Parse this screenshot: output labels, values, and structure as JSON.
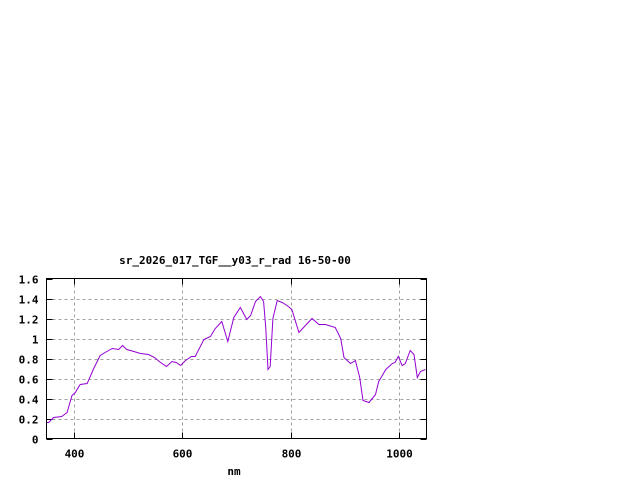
{
  "chart_data": {
    "type": "line",
    "title": "sr_2026_017_TGF__y03_r_rad 16-50-00",
    "xlabel": "nm",
    "ylabel": "",
    "xlim": [
      350,
      1050
    ],
    "ylim": [
      0,
      1.6
    ],
    "xticks": [
      400,
      600,
      800,
      1000
    ],
    "yticks": [
      0,
      0.2,
      0.4,
      0.6,
      0.8,
      1,
      1.2,
      1.4,
      1.6
    ],
    "ytick_labels": [
      "0",
      "0.2",
      "0.4",
      "0.6",
      "0.8",
      "1",
      "1.2",
      "1.4",
      "1.6"
    ],
    "grid": true,
    "legend": "none",
    "line_color": "#9400d3",
    "series": [
      {
        "x": [
          350,
          354,
          363,
          378,
          388,
          397,
          403,
          412,
          425,
          437,
          449,
          458,
          471,
          483,
          490,
          498,
          511,
          523,
          538,
          549,
          560,
          571,
          581,
          589,
          597,
          606,
          617,
          624,
          640,
          652,
          661,
          673,
          684,
          695,
          707,
          719,
          726,
          735,
          744,
          750,
          754,
          758,
          762,
          767,
          775,
          784,
          793,
          802,
          815,
          827,
          839,
          852,
          864,
          882,
          892,
          898,
          910,
          919,
          927,
          933,
          944,
          956,
          962,
          975,
          987,
          992,
          998,
          1005,
          1011,
          1020,
          1027,
          1033,
          1039,
          1048
        ],
        "y": [
          0.16,
          0.16,
          0.21,
          0.22,
          0.26,
          0.43,
          0.46,
          0.54,
          0.55,
          0.7,
          0.83,
          0.86,
          0.9,
          0.89,
          0.93,
          0.89,
          0.87,
          0.85,
          0.84,
          0.81,
          0.76,
          0.72,
          0.77,
          0.76,
          0.73,
          0.78,
          0.82,
          0.82,
          0.99,
          1.02,
          1.1,
          1.17,
          0.97,
          1.21,
          1.31,
          1.19,
          1.23,
          1.37,
          1.42,
          1.37,
          1.1,
          0.69,
          0.72,
          1.2,
          1.38,
          1.36,
          1.33,
          1.29,
          1.06,
          1.13,
          1.2,
          1.14,
          1.14,
          1.11,
          1.0,
          0.81,
          0.75,
          0.78,
          0.61,
          0.38,
          0.36,
          0.44,
          0.57,
          0.69,
          0.75,
          0.76,
          0.82,
          0.73,
          0.75,
          0.88,
          0.84,
          0.61,
          0.67,
          0.69
        ]
      }
    ]
  }
}
